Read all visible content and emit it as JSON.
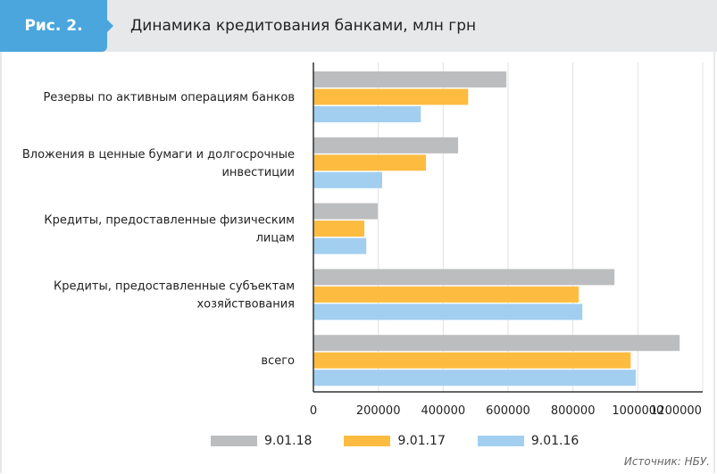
{
  "header": {
    "figure": "Рис. 2.",
    "title": "Динамика кредитования банками, млн грн"
  },
  "chart_data": {
    "type": "bar",
    "orientation": "horizontal",
    "title": "Динамика кредитования банками, млн грн",
    "categories": [
      [
        "Резервы по активным операциям банков"
      ],
      [
        "Вложения в ценные бумаги и долгосрочные",
        "инвестиции"
      ],
      [
        "Кредиты, предоставленные физическим",
        "лицам"
      ],
      [
        "Кредиты, предоставленные субъектам",
        "хозяйствования"
      ],
      [
        "всего"
      ]
    ],
    "series": [
      {
        "name": "9.01.18",
        "color": "#bcbdbf",
        "values": [
          595000,
          446000,
          198000,
          928000,
          1129000
        ]
      },
      {
        "name": "9.01.17",
        "color": "#fdbc40",
        "values": [
          477000,
          347000,
          157000,
          818000,
          978000
        ]
      },
      {
        "name": "9.01.16",
        "color": "#a2cff0",
        "values": [
          331000,
          212000,
          163000,
          829000,
          994000
        ]
      }
    ],
    "xlim": [
      0,
      1200000
    ],
    "ticks": [
      "0",
      "200000",
      "400000",
      "600000",
      "800000",
      "1000000",
      "1200000"
    ],
    "grid": true,
    "legend": "bottom"
  },
  "source": "Источник: НБУ."
}
